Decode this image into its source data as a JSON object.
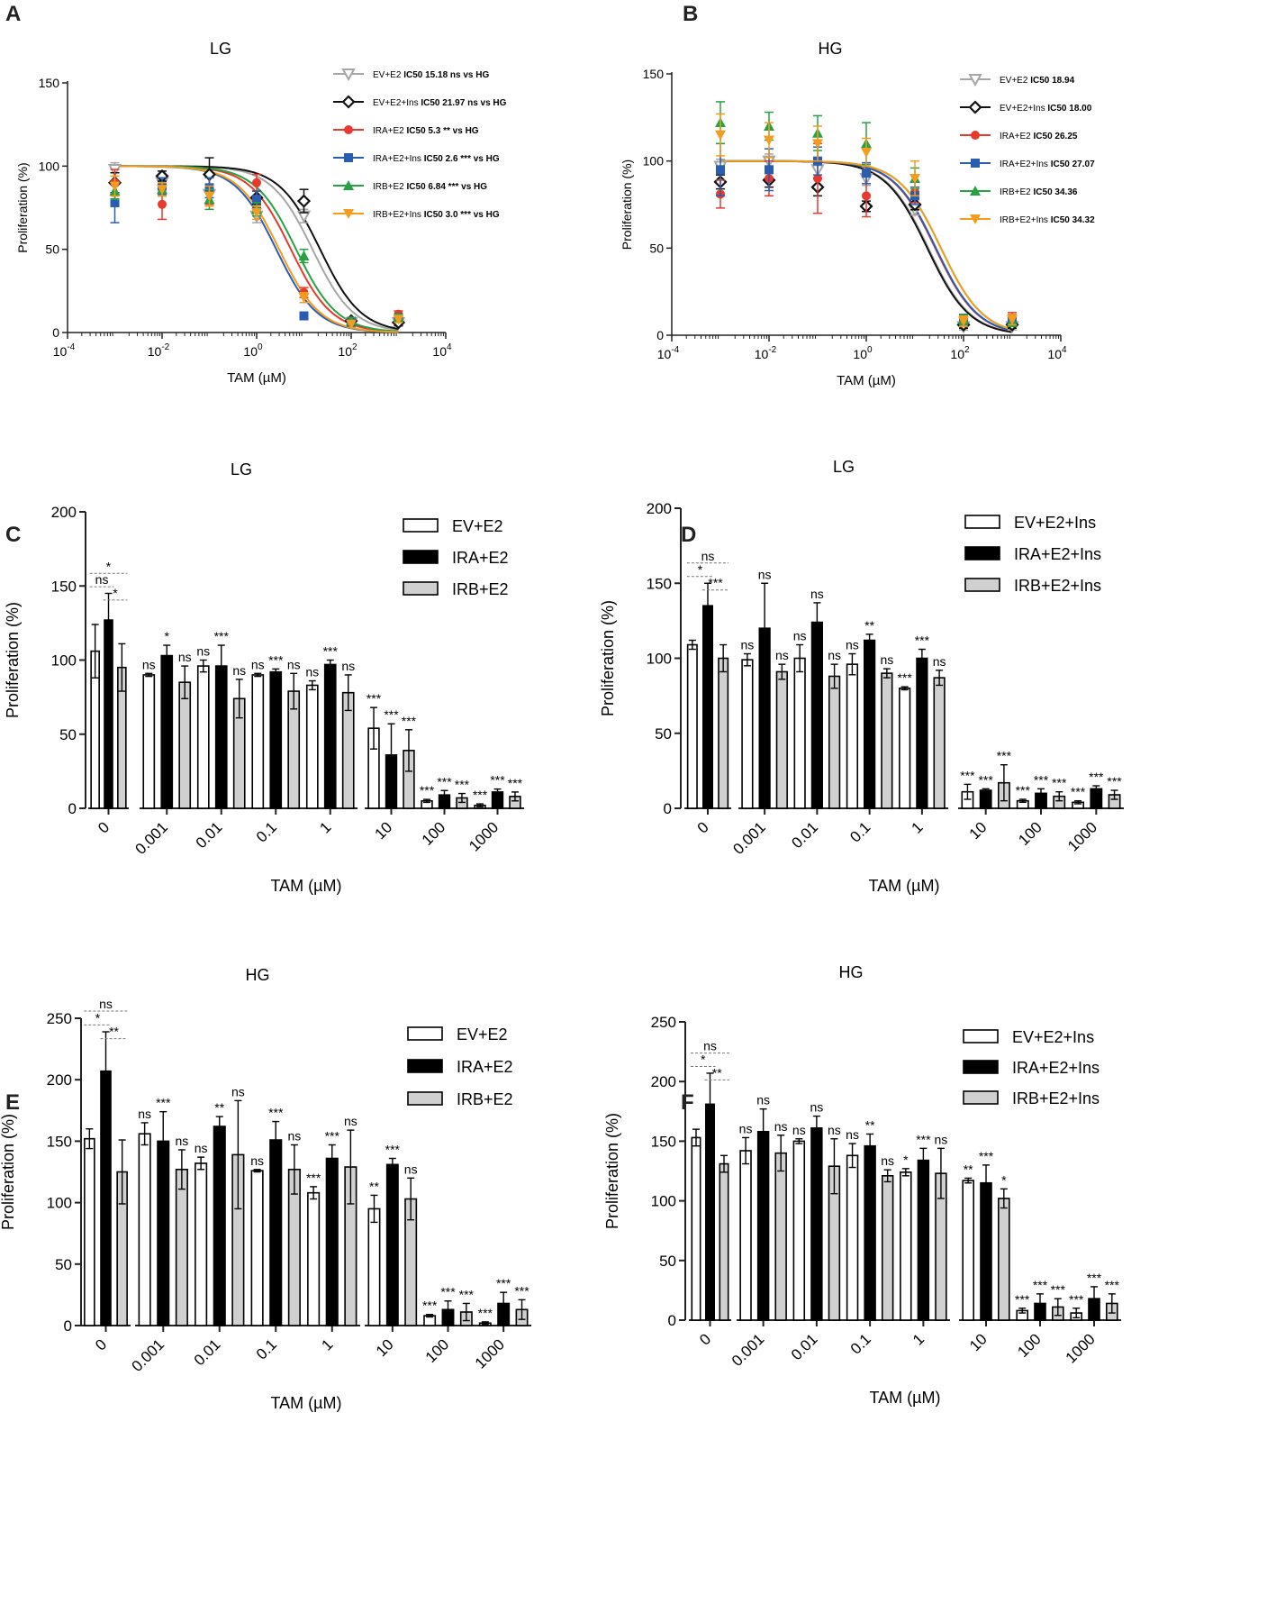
{
  "figure": {
    "panel_labels": [
      "A",
      "B",
      "C",
      "D",
      "E",
      "F"
    ]
  },
  "chart_data": [
    {
      "id": "A",
      "type": "line",
      "subtype": "dose-response",
      "title": "LG",
      "xlabel": "TAM (µM)",
      "ylabel": "Proliferation (%)",
      "xscale": "log",
      "xlim": [
        0.0001,
        10000
      ],
      "ylim": [
        0,
        150
      ],
      "yticks": [
        0,
        50,
        100,
        150
      ],
      "xticks": [
        {
          "base": "10",
          "exp": "-4",
          "value": 0.0001
        },
        {
          "base": "10",
          "exp": "-2",
          "value": 0.01
        },
        {
          "base": "10",
          "exp": "0",
          "value": 1
        },
        {
          "base": "10",
          "exp": "2",
          "value": 100
        },
        {
          "base": "10",
          "exp": "4",
          "value": 10000
        }
      ],
      "x": [
        0.001,
        0.01,
        0.1,
        1,
        10,
        100,
        1000
      ],
      "legend_position": "top-right",
      "series": [
        {
          "name": "EV+E2",
          "ic50_text": "IC50 15.18  ns vs HG",
          "color": "#a6a6a6",
          "marker": "triangle-down-open",
          "ic50": 15.18,
          "values": [
            98,
            90,
            83,
            70,
            70,
            6,
            6
          ],
          "errors": [
            4,
            4,
            5,
            4,
            4,
            2,
            2
          ]
        },
        {
          "name": "EV+E2+Ins",
          "ic50_text": "IC50 21.97 ns vs HG",
          "color": "#111111",
          "marker": "diamond-open",
          "ic50": 21.97,
          "values": [
            90,
            94,
            95,
            81,
            79,
            7,
            6
          ],
          "errors": [
            6,
            3,
            10,
            4,
            7,
            2,
            2
          ]
        },
        {
          "name": "IRA+E2",
          "ic50_text": "IC50 5.3 ** vs HG",
          "color": "#e8392b",
          "marker": "circle",
          "ic50": 5.3,
          "values": [
            90,
            77,
            85,
            90,
            24,
            7,
            11
          ],
          "errors": [
            8,
            9,
            8,
            5,
            3,
            2,
            2
          ]
        },
        {
          "name": "IRA+E2+Ins",
          "ic50_text": "IC50 2.6 *** vs HG",
          "color": "#2a5db0",
          "marker": "square",
          "ic50": 2.6,
          "values": [
            78,
            88,
            87,
            80,
            10,
            6,
            9
          ],
          "errors": [
            12,
            5,
            6,
            5,
            2,
            2,
            2
          ]
        },
        {
          "name": "IRB+E2",
          "ic50_text": "IC50 6.84 *** vs HG",
          "color": "#27a243",
          "marker": "triangle-up",
          "ic50": 6.84,
          "values": [
            85,
            86,
            80,
            74,
            46,
            7,
            9
          ],
          "errors": [
            5,
            4,
            6,
            4,
            4,
            2,
            2
          ]
        },
        {
          "name": "IRB+E2+Ins",
          "ic50_text": "IC50 3.0 *** vs HG",
          "color": "#f39c1f",
          "marker": "triangle-down",
          "ic50": 3.0,
          "values": [
            88,
            86,
            82,
            72,
            21,
            5,
            8
          ],
          "errors": [
            6,
            4,
            6,
            4,
            3,
            2,
            2
          ]
        }
      ]
    },
    {
      "id": "B",
      "type": "line",
      "subtype": "dose-response",
      "title": "HG",
      "xlabel": "TAM (µM)",
      "ylabel": "Proliferation (%)",
      "xscale": "log",
      "xlim": [
        0.0001,
        10000
      ],
      "ylim": [
        0,
        150
      ],
      "yticks": [
        0,
        50,
        100,
        150
      ],
      "xticks": [
        {
          "base": "10",
          "exp": "-4",
          "value": 0.0001
        },
        {
          "base": "10",
          "exp": "-2",
          "value": 0.01
        },
        {
          "base": "10",
          "exp": "0",
          "value": 1
        },
        {
          "base": "10",
          "exp": "2",
          "value": 100
        },
        {
          "base": "10",
          "exp": "4",
          "value": 10000
        }
      ],
      "x": [
        0.001,
        0.01,
        0.1,
        1,
        10,
        100,
        1000
      ],
      "legend_position": "top-right",
      "series": [
        {
          "name": "EV+E2",
          "ic50_text": "IC50 18.94",
          "color": "#a6a6a6",
          "marker": "triangle-down-open",
          "ic50": 18.94,
          "values": [
            97,
            100,
            95,
            90,
            72,
            5,
            5
          ],
          "errors": [
            4,
            4,
            5,
            4,
            3,
            2,
            2
          ]
        },
        {
          "name": "EV+E2+Ins",
          "ic50_text": "IC50 18.00",
          "color": "#111111",
          "marker": "diamond-open",
          "ic50": 18.0,
          "values": [
            88,
            89,
            85,
            74,
            75,
            6,
            6
          ],
          "errors": [
            4,
            4,
            5,
            3,
            3,
            2,
            2
          ]
        },
        {
          "name": "IRA+E2",
          "ic50_text": "IC50 26.25",
          "color": "#e8392b",
          "marker": "circle",
          "ic50": 26.25,
          "values": [
            81,
            90,
            90,
            80,
            82,
            8,
            10
          ],
          "errors": [
            8,
            10,
            20,
            12,
            6,
            3,
            3
          ]
        },
        {
          "name": "IRA+E2+Ins",
          "ic50_text": "IC50 27.07",
          "color": "#2a5db0",
          "marker": "square",
          "ic50": 27.07,
          "values": [
            95,
            95,
            100,
            93,
            80,
            9,
            9
          ],
          "errors": [
            15,
            12,
            8,
            6,
            5,
            3,
            3
          ]
        },
        {
          "name": "IRB+E2",
          "ic50_text": "IC50 34.36",
          "color": "#27a243",
          "marker": "triangle-up",
          "ic50": 34.36,
          "values": [
            122,
            120,
            116,
            110,
            90,
            9,
            8
          ],
          "errors": [
            12,
            8,
            10,
            12,
            6,
            3,
            3
          ]
        },
        {
          "name": "IRB+E2+Ins",
          "ic50_text": "IC50 34.32",
          "color": "#f39c1f",
          "marker": "triangle-down",
          "ic50": 34.32,
          "values": [
            115,
            112,
            110,
            105,
            90,
            8,
            9
          ],
          "errors": [
            12,
            10,
            10,
            8,
            10,
            3,
            3
          ]
        }
      ]
    },
    {
      "id": "C",
      "type": "bar",
      "title": "LG",
      "xlabel": "TAM (µM)",
      "ylabel": "Proliferation (%)",
      "ylim": [
        0,
        200
      ],
      "yticks": [
        0,
        50,
        100,
        150,
        200
      ],
      "categories": [
        "0",
        "0.001",
        "0.01",
        "0.1",
        "1",
        "10",
        "100",
        "1000"
      ],
      "axis_breaks_after": [
        0,
        4
      ],
      "legend_position": "top-right",
      "series": [
        {
          "name": "EV+E2",
          "style": "white",
          "values": [
            106,
            90,
            96,
            90,
            83,
            54,
            5,
            2
          ],
          "errors": [
            18,
            1,
            4,
            1,
            3,
            14,
            1,
            1
          ],
          "sig": [
            "",
            "ns",
            "ns",
            "ns",
            "ns",
            "***",
            "***",
            "***"
          ]
        },
        {
          "name": "IRA+E2",
          "style": "black",
          "values": [
            127,
            103,
            96,
            92,
            97,
            36,
            9,
            11
          ],
          "errors": [
            18,
            7,
            14,
            2,
            3,
            21,
            3,
            2
          ],
          "sig": [
            "",
            "*",
            "***",
            "***",
            "***",
            "***",
            "***",
            "***"
          ]
        },
        {
          "name": "IRB+E2",
          "style": "grey",
          "values": [
            95,
            85,
            74,
            79,
            78,
            39,
            7,
            8
          ],
          "errors": [
            16,
            11,
            13,
            12,
            12,
            14,
            3,
            3
          ],
          "sig": [
            "",
            "ns",
            "ns",
            "ns",
            "ns",
            "***",
            "***",
            "***"
          ]
        }
      ],
      "brackets": [
        {
          "from": 0,
          "to": 2,
          "label": "*",
          "level": 2
        },
        {
          "from": 0,
          "to": 1,
          "label": "ns",
          "level": 1
        },
        {
          "from": 1,
          "to": 2,
          "label": "*",
          "level": 0
        }
      ]
    },
    {
      "id": "D",
      "type": "bar",
      "title": "LG",
      "xlabel": "TAM (µM)",
      "ylabel": "Proliferation (%)",
      "ylim": [
        0,
        200
      ],
      "yticks": [
        0,
        50,
        100,
        150,
        200
      ],
      "categories": [
        "0",
        "0.001",
        "0.01",
        "0.1",
        "1",
        "10",
        "100",
        "1000"
      ],
      "axis_breaks_after": [
        0,
        4
      ],
      "legend_position": "top-right",
      "series": [
        {
          "name": "EV+E2+Ins",
          "style": "white",
          "values": [
            109,
            99,
            100,
            96,
            80,
            11,
            5,
            4
          ],
          "errors": [
            3,
            4,
            9,
            7,
            1,
            5,
            1,
            1
          ],
          "sig": [
            "",
            "ns",
            "ns",
            "ns",
            "***",
            "***",
            "***",
            "***"
          ]
        },
        {
          "name": "IRA+E2+Ins",
          "style": "black",
          "values": [
            135,
            120,
            124,
            112,
            100,
            12,
            10,
            13
          ],
          "errors": [
            15,
            30,
            13,
            4,
            6,
            1,
            3,
            2
          ],
          "sig": [
            "",
            "ns",
            "ns",
            "**",
            "***",
            "***",
            "***",
            "***"
          ]
        },
        {
          "name": "IRB+E2+Ins",
          "style": "grey",
          "values": [
            100,
            91,
            88,
            90,
            87,
            17,
            8,
            9
          ],
          "errors": [
            9,
            5,
            8,
            3,
            5,
            12,
            3,
            3
          ],
          "sig": [
            "",
            "ns",
            "ns",
            "ns",
            "ns",
            "***",
            "***",
            "***"
          ]
        }
      ],
      "brackets": [
        {
          "from": 0,
          "to": 2,
          "label": "ns",
          "level": 2
        },
        {
          "from": 0,
          "to": 1,
          "label": "*",
          "level": 1
        },
        {
          "from": 1,
          "to": 2,
          "label": "***",
          "level": 0
        }
      ]
    },
    {
      "id": "E",
      "type": "bar",
      "title": "HG",
      "xlabel": "TAM (µM)",
      "ylabel": "Proliferation (%)",
      "ylim": [
        0,
        250
      ],
      "yticks": [
        0,
        50,
        100,
        150,
        200,
        250
      ],
      "categories": [
        "0",
        "0.001",
        "0.01",
        "0.1",
        "1",
        "10",
        "100",
        "1000"
      ],
      "axis_breaks_after": [
        0,
        4
      ],
      "legend_position": "top-right",
      "series": [
        {
          "name": "EV+E2",
          "style": "white",
          "values": [
            152,
            156,
            132,
            126,
            108,
            95,
            8,
            2
          ],
          "errors": [
            8,
            9,
            5,
            1,
            5,
            11,
            1,
            1
          ],
          "sig": [
            "",
            "ns",
            "ns",
            "ns",
            "***",
            "**",
            "***",
            "***"
          ]
        },
        {
          "name": "IRA+E2",
          "style": "black",
          "values": [
            207,
            150,
            162,
            151,
            136,
            131,
            13,
            18
          ],
          "errors": [
            32,
            24,
            8,
            15,
            11,
            5,
            7,
            9
          ],
          "sig": [
            "",
            "***",
            "**",
            "***",
            "***",
            "***",
            "***",
            "***"
          ]
        },
        {
          "name": "IRB+E2",
          "style": "grey",
          "values": [
            125,
            127,
            139,
            127,
            129,
            103,
            11,
            13
          ],
          "errors": [
            26,
            16,
            44,
            20,
            30,
            17,
            7,
            8
          ],
          "sig": [
            "",
            "ns",
            "ns",
            "ns",
            "ns",
            "ns",
            "***",
            "***"
          ]
        }
      ],
      "brackets": [
        {
          "from": 0,
          "to": 2,
          "label": "ns",
          "level": 2
        },
        {
          "from": 0,
          "to": 1,
          "label": "*",
          "level": 1
        },
        {
          "from": 1,
          "to": 2,
          "label": "**",
          "level": 0
        }
      ]
    },
    {
      "id": "F",
      "type": "bar",
      "title": "HG",
      "xlabel": "TAM (µM)",
      "ylabel": "Proliferation (%)",
      "ylim": [
        0,
        250
      ],
      "yticks": [
        0,
        50,
        100,
        150,
        200,
        250
      ],
      "categories": [
        "0",
        "0.001",
        "0.01",
        "0.1",
        "1",
        "10",
        "100",
        "1000"
      ],
      "axis_breaks_after": [
        0,
        4
      ],
      "legend_position": "top-right",
      "series": [
        {
          "name": "EV+E2+Ins",
          "style": "white",
          "values": [
            153,
            142,
            150,
            138,
            124,
            117,
            8,
            6
          ],
          "errors": [
            7,
            11,
            2,
            10,
            3,
            2,
            2,
            4
          ],
          "sig": [
            "",
            "ns",
            "ns",
            "ns",
            "*",
            "**",
            "***",
            "***"
          ]
        },
        {
          "name": "IRA+E2+Ins",
          "style": "black",
          "values": [
            181,
            158,
            161,
            146,
            134,
            115,
            14,
            18
          ],
          "errors": [
            26,
            19,
            10,
            10,
            10,
            15,
            8,
            10
          ],
          "sig": [
            "",
            "ns",
            "ns",
            "**",
            "***",
            "***",
            "***",
            "***"
          ]
        },
        {
          "name": "IRB+E2+Ins",
          "style": "grey",
          "values": [
            131,
            140,
            129,
            121,
            123,
            102,
            11,
            14
          ],
          "errors": [
            7,
            15,
            23,
            5,
            21,
            8,
            7,
            8
          ],
          "sig": [
            "",
            "ns",
            "ns",
            "ns",
            "ns",
            "*",
            "***",
            "***"
          ]
        }
      ],
      "brackets": [
        {
          "from": 0,
          "to": 2,
          "label": "ns",
          "level": 2
        },
        {
          "from": 0,
          "to": 1,
          "label": "*",
          "level": 1
        },
        {
          "from": 1,
          "to": 2,
          "label": "**",
          "level": 0
        }
      ]
    }
  ]
}
